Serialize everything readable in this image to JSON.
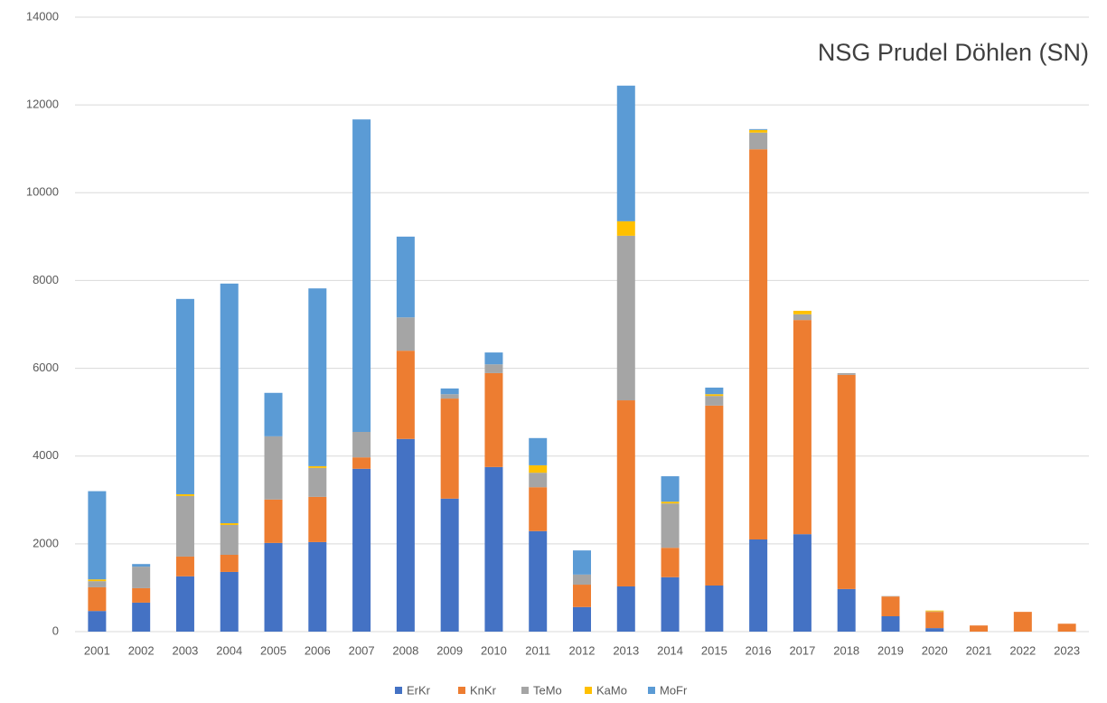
{
  "chart_data": {
    "type": "stacked_bar",
    "title": "NSG Prudel Döhlen (SN)",
    "categories": [
      "2001",
      "2002",
      "2003",
      "2004",
      "2005",
      "2006",
      "2007",
      "2008",
      "2009",
      "2010",
      "2011",
      "2012",
      "2013",
      "2014",
      "2015",
      "2016",
      "2017",
      "2018",
      "2019",
      "2020",
      "2021",
      "2022",
      "2023"
    ],
    "series": [
      {
        "name": "ErKr",
        "color": "#4472c4",
        "values": [
          470,
          660,
          1260,
          1360,
          2020,
          2040,
          3710,
          4390,
          3030,
          3750,
          2290,
          560,
          1030,
          1240,
          1050,
          2100,
          2220,
          970,
          350,
          80,
          0,
          0,
          0
        ]
      },
      {
        "name": "KnKr",
        "color": "#ed7d31",
        "values": [
          540,
          330,
          450,
          390,
          990,
          1030,
          260,
          2010,
          2280,
          2140,
          1000,
          510,
          4240,
          670,
          4100,
          8890,
          4880,
          4880,
          450,
          370,
          140,
          450,
          180
        ]
      },
      {
        "name": "TeMo",
        "color": "#a5a5a5",
        "values": [
          140,
          490,
          1380,
          680,
          1440,
          660,
          580,
          760,
          100,
          200,
          330,
          230,
          3750,
          1010,
          220,
          380,
          130,
          40,
          10,
          10,
          0,
          0,
          0
        ]
      },
      {
        "name": "KaMo",
        "color": "#ffc000",
        "values": [
          40,
          0,
          40,
          40,
          0,
          40,
          0,
          0,
          0,
          0,
          170,
          0,
          330,
          40,
          40,
          60,
          80,
          0,
          0,
          20,
          0,
          0,
          0
        ]
      },
      {
        "name": "MoFr",
        "color": "#5b9bd5",
        "values": [
          2010,
          60,
          4450,
          5460,
          990,
          4050,
          7120,
          1840,
          130,
          270,
          620,
          550,
          3090,
          580,
          150,
          20,
          0,
          0,
          0,
          0,
          0,
          0,
          0
        ]
      }
    ],
    "ylim": [
      0,
      14000
    ],
    "yticks": [
      0,
      2000,
      4000,
      6000,
      8000,
      10000,
      12000,
      14000
    ],
    "grid": true,
    "legend": "bottom"
  }
}
